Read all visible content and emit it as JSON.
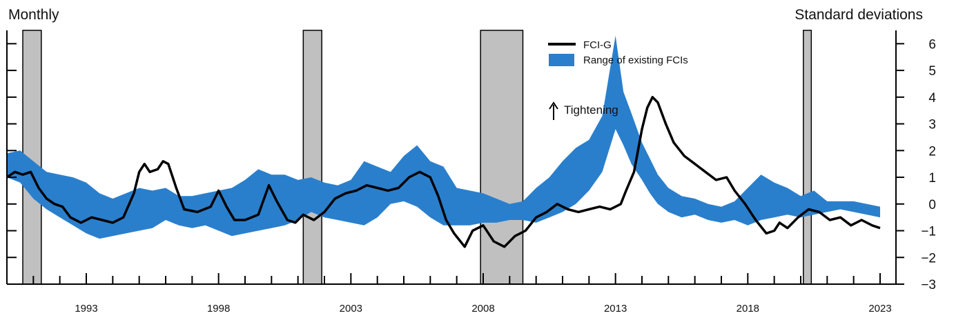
{
  "chart_data": {
    "type": "area",
    "left_label": "Monthly",
    "right_label": "Standard deviations",
    "annotation": "Tightening",
    "x_tick_labels": [
      "1993",
      "1998",
      "2003",
      "2008",
      "2013",
      "2018",
      "2023"
    ],
    "x_tick_values": [
      1993,
      1998,
      2003,
      2008,
      2013,
      2018,
      2023
    ],
    "xlim": [
      1990.0,
      2023.6
    ],
    "ylim": [
      -3,
      6.5
    ],
    "y_ticks": [
      -3,
      -2,
      -1,
      0,
      1,
      2,
      3,
      4,
      5,
      6
    ],
    "legend": {
      "placement": "top-center",
      "entries": [
        "FCI-G",
        "Range of existing FCIs"
      ]
    },
    "colors": {
      "line": "#000000",
      "band": "#2a7fcc",
      "recession": "#c0c0c0"
    },
    "recessions": [
      [
        1990.6,
        1991.3
      ],
      [
        2001.2,
        2001.9
      ],
      [
        2007.9,
        2009.5
      ],
      [
        2020.1,
        2020.4
      ]
    ],
    "series": [
      {
        "name": "FCI-G",
        "type": "line",
        "points": [
          [
            1990.0,
            1.0
          ],
          [
            1990.3,
            1.2
          ],
          [
            1990.6,
            1.1
          ],
          [
            1990.9,
            1.2
          ],
          [
            1991.2,
            0.6
          ],
          [
            1991.5,
            0.2
          ],
          [
            1991.8,
            0.0
          ],
          [
            1992.1,
            -0.1
          ],
          [
            1992.4,
            -0.5
          ],
          [
            1992.8,
            -0.7
          ],
          [
            1993.2,
            -0.5
          ],
          [
            1993.6,
            -0.6
          ],
          [
            1994.0,
            -0.7
          ],
          [
            1994.4,
            -0.5
          ],
          [
            1994.8,
            0.4
          ],
          [
            1995.0,
            1.2
          ],
          [
            1995.2,
            1.5
          ],
          [
            1995.4,
            1.2
          ],
          [
            1995.7,
            1.3
          ],
          [
            1995.9,
            1.6
          ],
          [
            1996.1,
            1.5
          ],
          [
            1996.4,
            0.6
          ],
          [
            1996.7,
            -0.2
          ],
          [
            1997.2,
            -0.3
          ],
          [
            1997.7,
            -0.1
          ],
          [
            1998.0,
            0.5
          ],
          [
            1998.3,
            -0.1
          ],
          [
            1998.6,
            -0.6
          ],
          [
            1999.0,
            -0.6
          ],
          [
            1999.5,
            -0.4
          ],
          [
            1999.9,
            0.7
          ],
          [
            2000.2,
            0.1
          ],
          [
            2000.6,
            -0.6
          ],
          [
            2000.9,
            -0.7
          ],
          [
            2001.2,
            -0.4
          ],
          [
            2001.6,
            -0.6
          ],
          [
            2002.0,
            -0.3
          ],
          [
            2002.4,
            0.2
          ],
          [
            2002.8,
            0.4
          ],
          [
            2003.2,
            0.5
          ],
          [
            2003.6,
            0.7
          ],
          [
            2004.0,
            0.6
          ],
          [
            2004.4,
            0.5
          ],
          [
            2004.8,
            0.6
          ],
          [
            2005.2,
            1.0
          ],
          [
            2005.6,
            1.2
          ],
          [
            2006.0,
            1.0
          ],
          [
            2006.3,
            0.3
          ],
          [
            2006.6,
            -0.6
          ],
          [
            2006.9,
            -1.1
          ],
          [
            2007.3,
            -1.6
          ],
          [
            2007.6,
            -1.0
          ],
          [
            2008.0,
            -0.8
          ],
          [
            2008.4,
            -1.4
          ],
          [
            2008.8,
            -1.6
          ],
          [
            2009.2,
            -1.2
          ],
          [
            2009.6,
            -1.0
          ],
          [
            2010.0,
            -0.5
          ],
          [
            2010.4,
            -0.3
          ],
          [
            2010.8,
            0.0
          ],
          [
            2011.2,
            -0.2
          ],
          [
            2011.6,
            -0.3
          ],
          [
            2012.0,
            -0.2
          ],
          [
            2012.4,
            -0.1
          ],
          [
            2012.8,
            -0.2
          ],
          [
            2013.0,
            -0.1
          ],
          [
            2013.2,
            0.0
          ],
          [
            2013.4,
            0.5
          ],
          [
            2013.7,
            1.2
          ],
          [
            2014.0,
            2.8
          ],
          [
            2014.2,
            3.6
          ],
          [
            2014.4,
            4.0
          ],
          [
            2014.6,
            3.8
          ],
          [
            2014.9,
            3.0
          ],
          [
            2015.2,
            2.3
          ],
          [
            2015.6,
            1.8
          ],
          [
            2016.0,
            1.5
          ],
          [
            2016.4,
            1.2
          ],
          [
            2016.8,
            0.9
          ],
          [
            2017.2,
            1.0
          ],
          [
            2017.5,
            0.5
          ],
          [
            2017.9,
            0.0
          ],
          [
            2018.3,
            -0.6
          ],
          [
            2018.7,
            -1.1
          ],
          [
            2019.0,
            -1.0
          ],
          [
            2019.2,
            -0.7
          ],
          [
            2019.5,
            -0.9
          ],
          [
            2019.9,
            -0.5
          ],
          [
            2020.3,
            -0.2
          ],
          [
            2020.7,
            -0.3
          ],
          [
            2021.1,
            -0.6
          ],
          [
            2021.5,
            -0.5
          ],
          [
            2021.9,
            -0.8
          ],
          [
            2022.3,
            -0.6
          ],
          [
            2022.7,
            -0.8
          ],
          [
            2023.0,
            -0.9
          ]
        ]
      },
      {
        "name": "Range of existing FCIs",
        "type": "band",
        "x": [
          1990.0,
          1990.5,
          1991.0,
          1991.5,
          1992.0,
          1992.5,
          1993.0,
          1993.5,
          1994.0,
          1994.5,
          1995.0,
          1995.5,
          1996.0,
          1996.5,
          1997.0,
          1997.5,
          1998.0,
          1998.5,
          1999.0,
          1999.5,
          2000.0,
          2000.5,
          2001.0,
          2001.5,
          2002.0,
          2002.5,
          2003.0,
          2003.5,
          2004.0,
          2004.5,
          2005.0,
          2005.5,
          2006.0,
          2006.5,
          2007.0,
          2007.5,
          2008.0,
          2008.5,
          2009.0,
          2009.5,
          2010.0,
          2010.5,
          2011.0,
          2011.5,
          2012.0,
          2012.5,
          2013.0,
          2013.3,
          2013.6,
          2014.0,
          2014.3,
          2014.6,
          2015.0,
          2015.5,
          2016.0,
          2016.5,
          2017.0,
          2017.5,
          2018.0,
          2018.5,
          2019.0,
          2019.5,
          2020.0,
          2020.5,
          2021.0,
          2021.5,
          2022.0,
          2022.5,
          2023.0
        ],
        "lower": [
          1.0,
          0.8,
          0.2,
          -0.2,
          -0.5,
          -0.8,
          -1.1,
          -1.3,
          -1.2,
          -1.1,
          -1.0,
          -0.9,
          -0.6,
          -0.8,
          -0.9,
          -0.8,
          -1.0,
          -1.2,
          -1.1,
          -1.0,
          -0.9,
          -0.8,
          -0.6,
          -0.3,
          -0.5,
          -0.6,
          -0.7,
          -0.8,
          -0.5,
          0.0,
          0.1,
          -0.1,
          -0.5,
          -0.8,
          -0.8,
          -0.8,
          -0.7,
          -0.7,
          -0.6,
          -0.6,
          -0.7,
          -0.5,
          -0.3,
          0.0,
          0.5,
          1.2,
          2.8,
          2.2,
          1.5,
          0.9,
          0.4,
          0.0,
          -0.3,
          -0.5,
          -0.4,
          -0.6,
          -0.7,
          -0.6,
          -0.8,
          -0.6,
          -0.5,
          -0.4,
          -0.5,
          -0.4,
          -0.3,
          -0.2,
          -0.3,
          -0.4,
          -0.5
        ],
        "upper": [
          1.9,
          2.0,
          1.6,
          1.2,
          1.1,
          1.0,
          0.8,
          0.4,
          0.2,
          0.4,
          0.6,
          0.5,
          0.6,
          0.3,
          0.3,
          0.4,
          0.5,
          0.6,
          0.9,
          1.3,
          1.1,
          1.1,
          0.9,
          1.0,
          0.8,
          0.7,
          0.9,
          1.6,
          1.4,
          1.2,
          1.8,
          2.2,
          1.6,
          1.4,
          0.6,
          0.5,
          0.4,
          0.2,
          0.0,
          0.1,
          0.6,
          1.0,
          1.6,
          2.1,
          2.4,
          3.3,
          6.3,
          4.2,
          3.4,
          2.3,
          1.7,
          1.1,
          0.6,
          0.3,
          0.2,
          0.0,
          -0.1,
          0.1,
          0.6,
          1.1,
          0.8,
          0.6,
          0.3,
          0.5,
          0.1,
          0.1,
          0.1,
          0.0,
          -0.1
        ]
      }
    ]
  }
}
